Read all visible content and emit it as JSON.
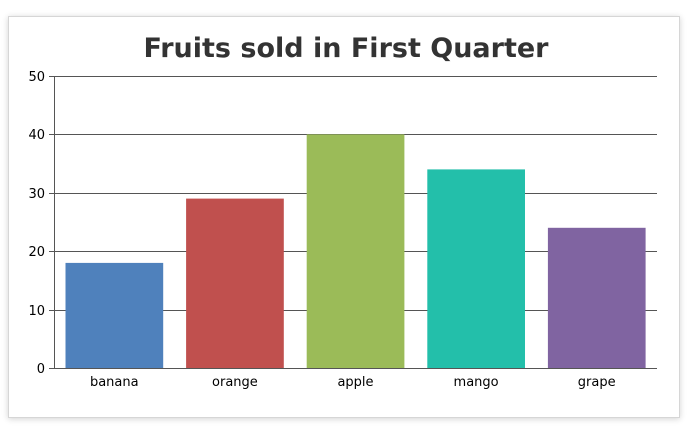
{
  "chart_data": {
    "type": "bar",
    "title": "Fruits sold in First Quarter",
    "xlabel": "",
    "ylabel": "",
    "categories": [
      "banana",
      "orange",
      "apple",
      "mango",
      "grape"
    ],
    "values": [
      18,
      29,
      40,
      34,
      24
    ],
    "colors": [
      "#4f81bc",
      "#c0504e",
      "#9bbb58",
      "#23bfaa",
      "#8064a1"
    ],
    "ylim": [
      0,
      50
    ],
    "yticks": [
      0,
      10,
      20,
      30,
      40,
      50
    ],
    "ytick_labels": [
      "0",
      "10",
      "20",
      "30",
      "40",
      "50"
    ],
    "grid": true,
    "legend": "none"
  }
}
